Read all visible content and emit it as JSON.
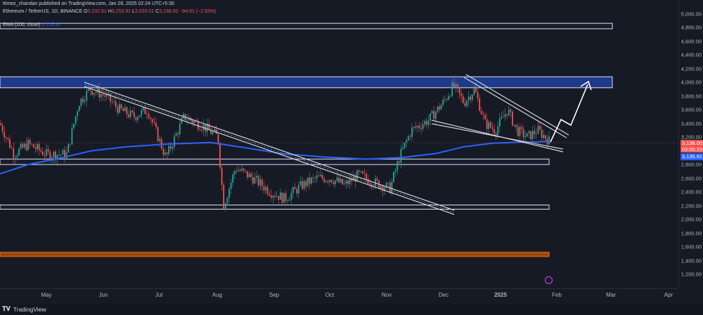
{
  "header": {
    "published": "ttimez_chandan published on TradingView.com, Jan 28, 2025 02:24 UTC+5:30",
    "symbol": "Ethereum / TetherUS, 1D, BINANCE",
    "open_label": "O",
    "open": "3,232.61",
    "high_label": "H",
    "high": "3,253.91",
    "low_label": "L",
    "low": "3,020.01",
    "close_label": "C",
    "close": "3,138.00",
    "change": "−94.61 (−2.93%)",
    "ema_label": "EMA (200, close)",
    "ema_value": "3,135.91"
  },
  "price_axis": {
    "labels": [
      "5,000.00",
      "4,800.00",
      "4,600.00",
      "4,400.00",
      "4,200.00",
      "4,000.00",
      "3,800.00",
      "3,600.00",
      "3,400.00",
      "3,200.00",
      "2,800.00",
      "2,600.00",
      "2,400.00",
      "2,200.00",
      "2,000.00",
      "1,800.00",
      "1,600.00",
      "1,400.00",
      "1,200.00"
    ],
    "close_tag": "3,138.00",
    "countdown": "03:05:23",
    "ema_tag": "3,135.91"
  },
  "time_axis": {
    "labels": [
      "May",
      "Jun",
      "Jul",
      "Aug",
      "Sep",
      "Oct",
      "Nov",
      "Dec",
      "2025",
      "Feb",
      "Mar",
      "Apr"
    ]
  },
  "footer": {
    "brand": "TradingView"
  },
  "colors": {
    "up": "#26a69a",
    "down": "#ef5350",
    "ema": "#2962ff",
    "zone": "#1e3a8a",
    "support_orange": "#ff6d00"
  },
  "chart_data": {
    "type": "candlestick",
    "x_range": [
      "2024-04-01",
      "2025-04-10"
    ],
    "y_range": [
      1100,
      5200
    ],
    "monthly_closes": [
      {
        "x": "2024-04",
        "y": 3010
      },
      {
        "x": "2024-05",
        "y": 3760
      },
      {
        "x": "2024-06",
        "y": 3430
      },
      {
        "x": "2024-07",
        "y": 3240
      },
      {
        "x": "2024-08",
        "y": 2510
      },
      {
        "x": "2024-09",
        "y": 2600
      },
      {
        "x": "2024-10",
        "y": 2520
      },
      {
        "x": "2024-11",
        "y": 3700
      },
      {
        "x": "2024-12",
        "y": 3330
      },
      {
        "x": "2025-01",
        "y": 3138
      }
    ],
    "ema200": 3135.91,
    "zones": [
      {
        "low": 4780,
        "high": 4860
      },
      {
        "low": 3920,
        "high": 4080
      },
      {
        "low": 2800,
        "high": 2880
      },
      {
        "low": 2160,
        "high": 2210
      },
      {
        "low": 1460,
        "high": 1520
      }
    ]
  }
}
